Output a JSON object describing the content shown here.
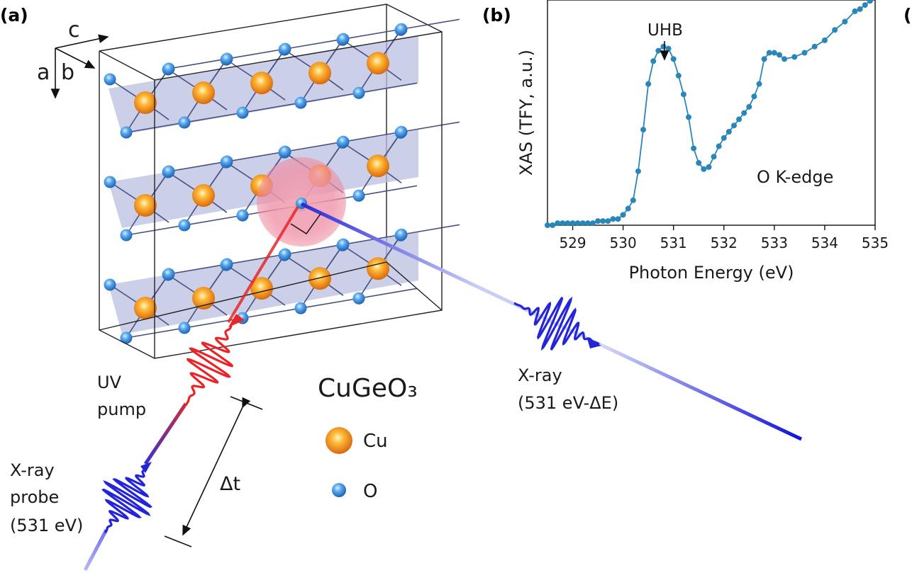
{
  "panels": {
    "a": "(a)",
    "b": "(b)",
    "c_partial": "("
  },
  "axes_labels": {
    "c": "c",
    "a": "a",
    "b": "b"
  },
  "material": "CuGeO₃",
  "legend": {
    "cu": "Cu",
    "o": "O"
  },
  "beams": {
    "uv_line1": "UV",
    "uv_line2": "pump",
    "probe_line1": "X-ray",
    "probe_line2": "probe",
    "probe_line3": "(531 eV)",
    "out_line1": "X-ray",
    "out_line2": "(531 eV-ΔE)",
    "delay": "Δt"
  },
  "colors": {
    "cu": "#f08a1a",
    "o": "#3a8fd6",
    "plane": "#b9bfe0",
    "uv": "#e8262a",
    "xray": "#2020e0",
    "curve": "#2a86b8"
  },
  "chart_data": {
    "type": "line",
    "xlabel": "Photon Energy (eV)",
    "ylabel": "XAS (TFY, a.u.)",
    "xlim": [
      528.5,
      535
    ],
    "ylim": [
      0,
      1.05
    ],
    "xticks": [
      529,
      530,
      531,
      532,
      533,
      534,
      535
    ],
    "yticks_shown": false,
    "annotations": [
      {
        "text": "UHB",
        "x": 530.8,
        "y": 0.85
      },
      {
        "text": "O K-edge"
      }
    ],
    "series": [
      {
        "x": [
          528.5,
          528.6,
          528.7,
          528.8,
          528.9,
          529.0,
          529.1,
          529.2,
          529.3,
          529.4,
          529.5,
          529.6,
          529.7,
          529.8,
          529.9,
          530.0,
          530.1,
          530.2,
          530.3,
          530.4,
          530.5,
          530.6,
          530.7,
          530.8,
          530.9,
          531.0,
          531.1,
          531.2,
          531.3,
          531.4,
          531.5,
          531.6,
          531.7,
          531.8,
          531.9,
          532.0,
          532.1,
          532.2,
          532.3,
          532.4,
          532.5,
          532.6,
          532.7,
          532.8,
          532.9,
          533.0,
          533.1,
          533.2,
          533.4,
          533.6,
          533.8,
          534.0,
          534.2,
          534.4,
          534.6,
          534.7,
          534.8,
          534.9
        ],
        "y": [
          0.0,
          0.0,
          0.01,
          0.01,
          0.01,
          0.01,
          0.01,
          0.01,
          0.01,
          0.01,
          0.02,
          0.02,
          0.02,
          0.03,
          0.03,
          0.05,
          0.08,
          0.12,
          0.26,
          0.46,
          0.68,
          0.79,
          0.84,
          0.86,
          0.85,
          0.8,
          0.72,
          0.63,
          0.52,
          0.37,
          0.3,
          0.27,
          0.28,
          0.33,
          0.38,
          0.42,
          0.45,
          0.48,
          0.51,
          0.54,
          0.57,
          0.62,
          0.68,
          0.8,
          0.83,
          0.83,
          0.82,
          0.8,
          0.81,
          0.83,
          0.86,
          0.89,
          0.94,
          0.98,
          1.03,
          1.04,
          1.06,
          1.08
        ]
      }
    ]
  }
}
